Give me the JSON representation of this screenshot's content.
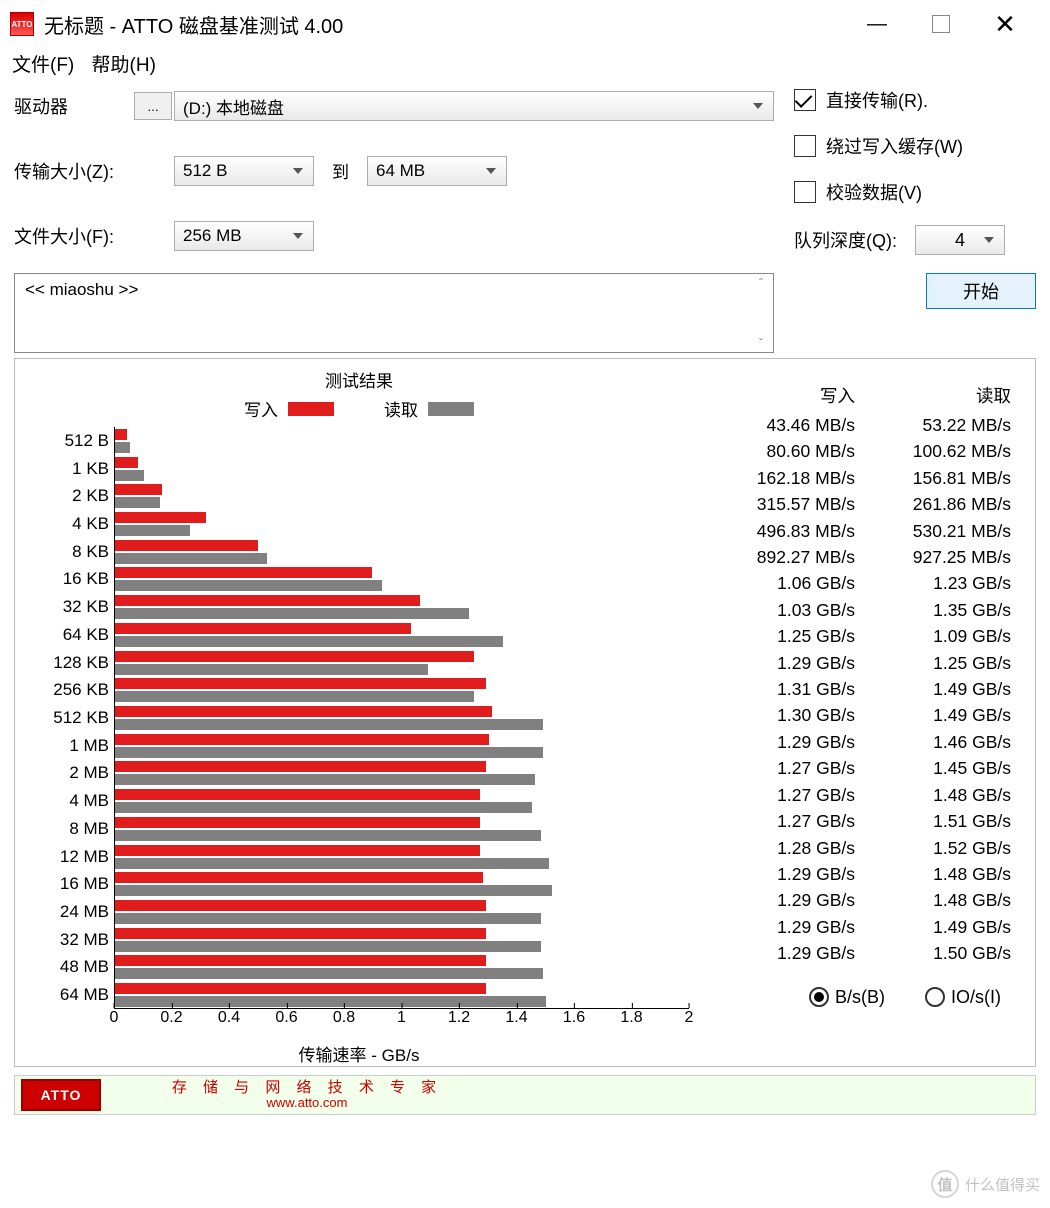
{
  "window": {
    "title": "无标题 - ATTO 磁盘基准测试 4.00",
    "icon_text": "ATTO"
  },
  "menu": {
    "file": "文件(F)",
    "help": "帮助(H)"
  },
  "labels": {
    "drive": "驱动器",
    "transfer_size": "传输大小(Z):",
    "to": "到",
    "file_size": "文件大小(F):",
    "browse": "..."
  },
  "values": {
    "drive": "(D:) 本地磁盘",
    "transfer_from": "512 B",
    "transfer_to": "64 MB",
    "file_size": "256 MB",
    "queue_depth": "4"
  },
  "checkboxes": {
    "direct": {
      "label": "直接传输(R).",
      "checked": true
    },
    "bypass": {
      "label": "绕过写入缓存(W)",
      "checked": false
    },
    "verify": {
      "label": "校验数据(V)",
      "checked": false
    }
  },
  "queue_label": "队列深度(Q):",
  "description": "<< miaoshu >>",
  "start_button": "开始",
  "chart": {
    "title": "测试结果",
    "legend_write": "写入",
    "legend_read": "读取",
    "xlabel": "传输速率 - GB/s",
    "write_color": "#e01c1c",
    "read_color": "#808080",
    "x_max": 2.0,
    "x_ticks": [
      "0",
      "0.2",
      "0.4",
      "0.6",
      "0.8",
      "1",
      "1.2",
      "1.4",
      "1.6",
      "1.8",
      "2"
    ],
    "rows": [
      {
        "size": "512 B",
        "write_gb": 0.04346,
        "read_gb": 0.05322,
        "write_txt": "43.46 MB/s",
        "read_txt": "53.22 MB/s"
      },
      {
        "size": "1 KB",
        "write_gb": 0.0806,
        "read_gb": 0.10062,
        "write_txt": "80.60 MB/s",
        "read_txt": "100.62 MB/s"
      },
      {
        "size": "2 KB",
        "write_gb": 0.16218,
        "read_gb": 0.15681,
        "write_txt": "162.18 MB/s",
        "read_txt": "156.81 MB/s"
      },
      {
        "size": "4 KB",
        "write_gb": 0.31557,
        "read_gb": 0.26186,
        "write_txt": "315.57 MB/s",
        "read_txt": "261.86 MB/s"
      },
      {
        "size": "8 KB",
        "write_gb": 0.49683,
        "read_gb": 0.53021,
        "write_txt": "496.83 MB/s",
        "read_txt": "530.21 MB/s"
      },
      {
        "size": "16 KB",
        "write_gb": 0.89227,
        "read_gb": 0.92725,
        "write_txt": "892.27 MB/s",
        "read_txt": "927.25 MB/s"
      },
      {
        "size": "32 KB",
        "write_gb": 1.06,
        "read_gb": 1.23,
        "write_txt": "1.06 GB/s",
        "read_txt": "1.23 GB/s"
      },
      {
        "size": "64 KB",
        "write_gb": 1.03,
        "read_gb": 1.35,
        "write_txt": "1.03 GB/s",
        "read_txt": "1.35 GB/s"
      },
      {
        "size": "128 KB",
        "write_gb": 1.25,
        "read_gb": 1.09,
        "write_txt": "1.25 GB/s",
        "read_txt": "1.09 GB/s"
      },
      {
        "size": "256 KB",
        "write_gb": 1.29,
        "read_gb": 1.25,
        "write_txt": "1.29 GB/s",
        "read_txt": "1.25 GB/s"
      },
      {
        "size": "512 KB",
        "write_gb": 1.31,
        "read_gb": 1.49,
        "write_txt": "1.31 GB/s",
        "read_txt": "1.49 GB/s"
      },
      {
        "size": "1 MB",
        "write_gb": 1.3,
        "read_gb": 1.49,
        "write_txt": "1.30 GB/s",
        "read_txt": "1.49 GB/s"
      },
      {
        "size": "2 MB",
        "write_gb": 1.29,
        "read_gb": 1.46,
        "write_txt": "1.29 GB/s",
        "read_txt": "1.46 GB/s"
      },
      {
        "size": "4 MB",
        "write_gb": 1.27,
        "read_gb": 1.45,
        "write_txt": "1.27 GB/s",
        "read_txt": "1.45 GB/s"
      },
      {
        "size": "8 MB",
        "write_gb": 1.27,
        "read_gb": 1.48,
        "write_txt": "1.27 GB/s",
        "read_txt": "1.48 GB/s"
      },
      {
        "size": "12 MB",
        "write_gb": 1.27,
        "read_gb": 1.51,
        "write_txt": "1.27 GB/s",
        "read_txt": "1.51 GB/s"
      },
      {
        "size": "16 MB",
        "write_gb": 1.28,
        "read_gb": 1.52,
        "write_txt": "1.28 GB/s",
        "read_txt": "1.52 GB/s"
      },
      {
        "size": "24 MB",
        "write_gb": 1.29,
        "read_gb": 1.48,
        "write_txt": "1.29 GB/s",
        "read_txt": "1.48 GB/s"
      },
      {
        "size": "32 MB",
        "write_gb": 1.29,
        "read_gb": 1.48,
        "write_txt": "1.29 GB/s",
        "read_txt": "1.48 GB/s"
      },
      {
        "size": "48 MB",
        "write_gb": 1.29,
        "read_gb": 1.49,
        "write_txt": "1.29 GB/s",
        "read_txt": "1.49 GB/s"
      },
      {
        "size": "64 MB",
        "write_gb": 1.29,
        "read_gb": 1.5,
        "write_txt": "1.29 GB/s",
        "read_txt": "1.50 GB/s"
      }
    ]
  },
  "table_head": {
    "write": "写入",
    "read": "读取"
  },
  "radios": {
    "bs": "B/s(B)",
    "ios": "IO/s(I)",
    "selected": "bs"
  },
  "footer": {
    "logo": "ATTO",
    "text": "存 储 与 网 络 技 术 专 家",
    "url": "www.atto.com"
  },
  "watermark": {
    "char": "值",
    "text": "什么值得买"
  }
}
